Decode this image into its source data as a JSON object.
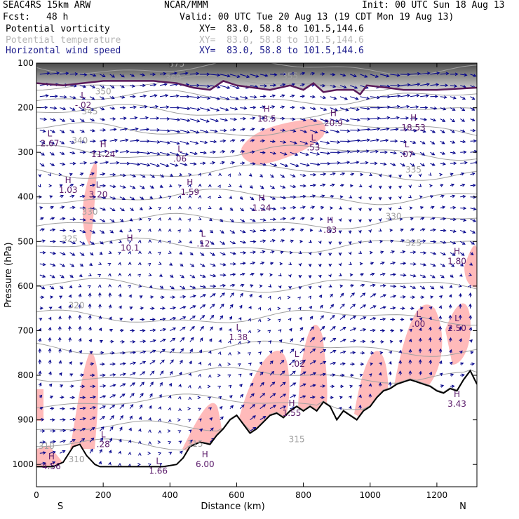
{
  "header": {
    "model": "SEAC4RS 15km ARW",
    "org": "NCAR/MMM",
    "init": "Init: 00 UTC Sun 18 Aug 13",
    "fcst_label": "Fcst:",
    "fcst_value": "48 h",
    "valid": "Valid: 00 UTC Tue 20 Aug 13 (19 CDT Mon 19 Aug 13)",
    "fields": [
      {
        "name": "Potential vorticity",
        "xy": "XY=  83.0, 58.8 to 101.5,144.6"
      },
      {
        "name": "Potential temperature",
        "xy": "XY=  83.0, 58.8 to 101.5,144.6"
      },
      {
        "name": "Horizontal wind speed",
        "xy": "XY=  83.0, 58.8 to 101.5,144.6"
      }
    ]
  },
  "chart_data": {
    "type": "cross-section",
    "xlabel": "Distance (km)",
    "ylabel": "Pressure (hPa)",
    "xlim": [
      0,
      1320
    ],
    "ylim": [
      1050,
      100
    ],
    "x_ticks": [
      0,
      200,
      400,
      600,
      800,
      1000,
      1200
    ],
    "y_ticks": [
      100,
      200,
      300,
      400,
      500,
      600,
      700,
      800,
      900,
      1000
    ],
    "end_labels": {
      "left": "S",
      "right": "N"
    },
    "colors": {
      "axes": "#000000",
      "pv_high": "#ffb6b6",
      "theta": "#a0a0a0",
      "wind": "#00008b",
      "label": "#5a1a6a",
      "terrain": "#000000",
      "tropopause": "#5a1a5a"
    },
    "terrain": [
      [
        0,
        1005
      ],
      [
        50,
        1005
      ],
      [
        80,
        995
      ],
      [
        110,
        960
      ],
      [
        130,
        955
      ],
      [
        150,
        980
      ],
      [
        175,
        1000
      ],
      [
        190,
        1005
      ],
      [
        380,
        1005
      ],
      [
        420,
        1000
      ],
      [
        440,
        985
      ],
      [
        460,
        960
      ],
      [
        490,
        950
      ],
      [
        520,
        955
      ],
      [
        540,
        935
      ],
      [
        560,
        920
      ],
      [
        580,
        900
      ],
      [
        600,
        890
      ],
      [
        620,
        910
      ],
      [
        640,
        930
      ],
      [
        660,
        920
      ],
      [
        680,
        905
      ],
      [
        700,
        890
      ],
      [
        720,
        885
      ],
      [
        740,
        895
      ],
      [
        760,
        880
      ],
      [
        780,
        870
      ],
      [
        800,
        880
      ],
      [
        820,
        870
      ],
      [
        840,
        880
      ],
      [
        860,
        860
      ],
      [
        880,
        870
      ],
      [
        900,
        900
      ],
      [
        920,
        880
      ],
      [
        940,
        890
      ],
      [
        960,
        900
      ],
      [
        980,
        880
      ],
      [
        1000,
        870
      ],
      [
        1020,
        850
      ],
      [
        1040,
        835
      ],
      [
        1060,
        830
      ],
      [
        1080,
        820
      ],
      [
        1100,
        815
      ],
      [
        1120,
        810
      ],
      [
        1140,
        815
      ],
      [
        1160,
        820
      ],
      [
        1180,
        825
      ],
      [
        1200,
        835
      ],
      [
        1220,
        840
      ],
      [
        1240,
        830
      ],
      [
        1260,
        835
      ],
      [
        1280,
        810
      ],
      [
        1300,
        790
      ],
      [
        1320,
        820
      ]
    ],
    "tropopause": [
      [
        0,
        145
      ],
      [
        80,
        150
      ],
      [
        200,
        140
      ],
      [
        350,
        140
      ],
      [
        420,
        145
      ],
      [
        470,
        155
      ],
      [
        520,
        160
      ],
      [
        560,
        140
      ],
      [
        600,
        150
      ],
      [
        650,
        155
      ],
      [
        700,
        160
      ],
      [
        760,
        150
      ],
      [
        800,
        160
      ],
      [
        830,
        145
      ],
      [
        860,
        165
      ],
      [
        900,
        160
      ],
      [
        950,
        160
      ],
      [
        970,
        170
      ],
      [
        990,
        150
      ],
      [
        1050,
        155
      ],
      [
        1100,
        160
      ],
      [
        1200,
        160
      ],
      [
        1320,
        155
      ]
    ],
    "theta_labels": [
      {
        "x": 420,
        "p": 108,
        "text": "375"
      },
      {
        "x": 410,
        "p": 140,
        "text": "360"
      },
      {
        "x": 760,
        "p": 135,
        "text": "355"
      },
      {
        "x": 200,
        "p": 170,
        "text": "350"
      },
      {
        "x": 160,
        "p": 215,
        "text": "345"
      },
      {
        "x": 130,
        "p": 280,
        "text": "340"
      },
      {
        "x": 1130,
        "p": 345,
        "text": "335"
      },
      {
        "x": 160,
        "p": 440,
        "text": "330"
      },
      {
        "x": 1070,
        "p": 450,
        "text": "330"
      },
      {
        "x": 100,
        "p": 500,
        "text": "325"
      },
      {
        "x": 1130,
        "p": 510,
        "text": "325"
      },
      {
        "x": 120,
        "p": 650,
        "text": "320"
      },
      {
        "x": 475,
        "p": 960,
        "text": "315"
      },
      {
        "x": 780,
        "p": 950,
        "text": "315"
      },
      {
        "x": 120,
        "p": 995,
        "text": "310"
      },
      {
        "x": 30,
        "p": 965,
        "text": "310"
      }
    ],
    "extrema": [
      {
        "type": "L",
        "value": "-.02",
        "x": 140,
        "p": 190
      },
      {
        "type": "L",
        "value": "2.67",
        "x": 40,
        "p": 275
      },
      {
        "type": "H",
        "value": "11.24",
        "x": 200,
        "p": 300
      },
      {
        "type": "L",
        "value": ".06",
        "x": 430,
        "p": 310
      },
      {
        "type": "H",
        "value": "1.03",
        "x": 95,
        "p": 380
      },
      {
        "type": "L",
        "value": "3.20",
        "x": 185,
        "p": 390
      },
      {
        "type": "H",
        "value": "1.59",
        "x": 460,
        "p": 385
      },
      {
        "type": "H",
        "value": "18.5",
        "x": 690,
        "p": 220
      },
      {
        "type": "H",
        "value": "20.9",
        "x": 890,
        "p": 230
      },
      {
        "type": "L",
        "value": ".53",
        "x": 830,
        "p": 285
      },
      {
        "type": "H",
        "value": "18.53",
        "x": 1130,
        "p": 240
      },
      {
        "type": "L",
        "value": ".07",
        "x": 1110,
        "p": 300
      },
      {
        "type": "H",
        "value": "1.24",
        "x": 675,
        "p": 420
      },
      {
        "type": "H",
        "value": ".83",
        "x": 880,
        "p": 470
      },
      {
        "type": "H",
        "value": "10.1",
        "x": 280,
        "p": 510
      },
      {
        "type": "L",
        "value": ".12",
        "x": 500,
        "p": 500
      },
      {
        "type": "H",
        "value": "1.80",
        "x": 1260,
        "p": 540
      },
      {
        "type": "L",
        "value": "1.38",
        "x": 605,
        "p": 710
      },
      {
        "type": "L",
        "value": "-.02",
        "x": 780,
        "p": 770
      },
      {
        "type": "L",
        "value": ".00",
        "x": 1145,
        "p": 680
      },
      {
        "type": "L",
        "value": "2.50",
        "x": 1260,
        "p": 690
      },
      {
        "type": "H",
        "value": "3.43",
        "x": 1260,
        "p": 860
      },
      {
        "type": "H",
        "value": "1.55",
        "x": 765,
        "p": 880
      },
      {
        "type": "L",
        "value": ".28",
        "x": 200,
        "p": 950
      },
      {
        "type": "H",
        "value": "4.56",
        "x": 45,
        "p": 1000
      },
      {
        "type": "L",
        "value": "1.66",
        "x": 365,
        "p": 1010
      },
      {
        "type": "H",
        "value": "6.00",
        "x": 505,
        "p": 995
      }
    ]
  }
}
